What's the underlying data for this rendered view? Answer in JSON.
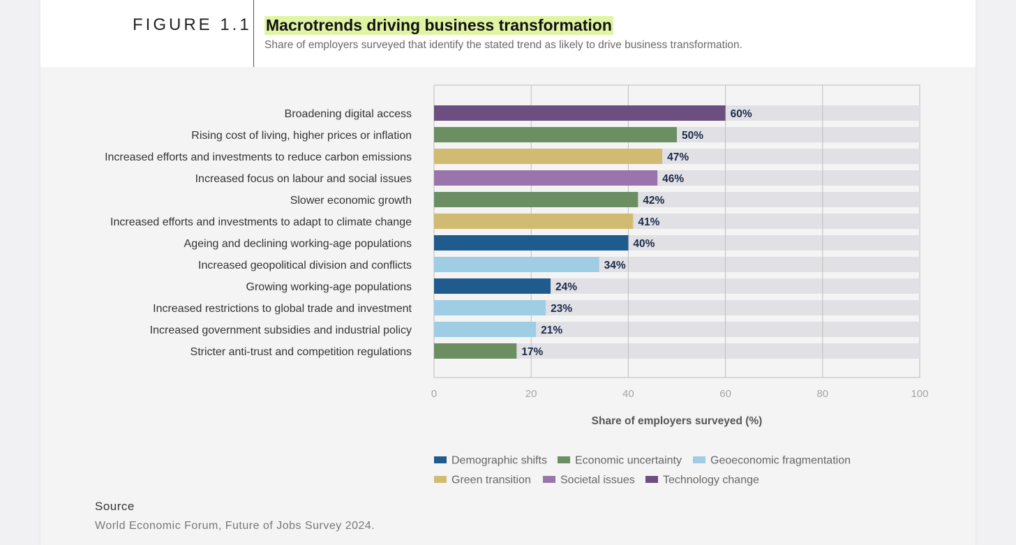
{
  "header": {
    "figure_label": "FIGURE 1.1",
    "title": "Macrotrends driving business transformation",
    "subtitle": "Share of employers surveyed that identify the stated trend as likely to drive business transformation."
  },
  "source": {
    "label": "Source",
    "text": "World Economic Forum, Future of Jobs Survey 2024."
  },
  "colors": {
    "Demographic shifts": "#1f5b8c",
    "Economic uncertainty": "#6b8f62",
    "Geoeconomic fragmentation": "#9fcde3",
    "Green transition": "#d1bb72",
    "Societal issues": "#9a75ac",
    "Technology change": "#6c4e7f",
    "track": "#e1e1e5",
    "value_label": "#1a2a4a"
  },
  "chart_data": {
    "type": "bar",
    "orientation": "horizontal",
    "title": "Macrotrends driving business transformation",
    "xlabel": "Share of employers surveyed (%)",
    "ylabel": "",
    "xlim": [
      0,
      100
    ],
    "xticks": [
      0,
      20,
      40,
      60,
      80,
      100
    ],
    "grid": true,
    "legend_position": "bottom",
    "categories": [
      "Broadening digital access",
      "Rising cost of living, higher prices or inflation",
      "Increased efforts and investments to reduce carbon emissions",
      "Increased focus on labour and social issues",
      "Slower economic growth",
      "Increased efforts and investments to adapt to climate change",
      "Ageing and declining working-age populations",
      "Increased geopolitical division and conflicts",
      "Growing working-age populations",
      "Increased restrictions to global trade and investment",
      "Increased government subsidies and industrial policy",
      "Stricter anti-trust and competition regulations"
    ],
    "values": [
      60,
      50,
      47,
      46,
      42,
      41,
      40,
      34,
      24,
      23,
      21,
      17
    ],
    "value_labels": [
      "60%",
      "50%",
      "47%",
      "46%",
      "42%",
      "41%",
      "40%",
      "34%",
      "24%",
      "23%",
      "21%",
      "17%"
    ],
    "groups": [
      "Technology change",
      "Economic uncertainty",
      "Green transition",
      "Societal issues",
      "Economic uncertainty",
      "Green transition",
      "Demographic shifts",
      "Geoeconomic fragmentation",
      "Demographic shifts",
      "Geoeconomic fragmentation",
      "Geoeconomic fragmentation",
      "Economic uncertainty"
    ],
    "legend": [
      "Demographic shifts",
      "Economic uncertainty",
      "Geoeconomic fragmentation",
      "Green transition",
      "Societal issues",
      "Technology change"
    ]
  }
}
